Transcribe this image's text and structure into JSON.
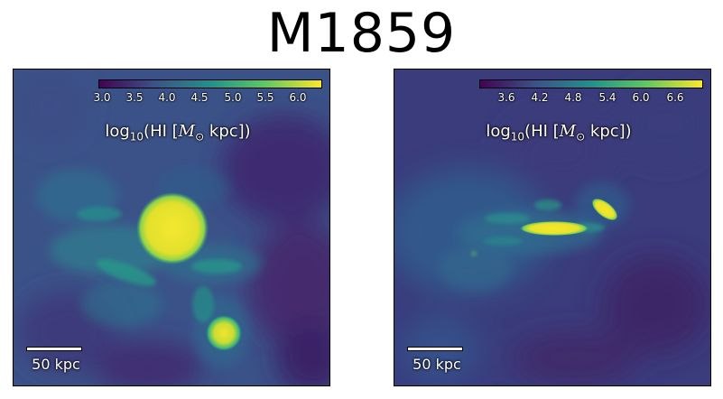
{
  "title": "M1859",
  "colors": {
    "viridis_dark": "#440154",
    "viridis_blue": "#31688e",
    "viridis_teal": "#21918c",
    "viridis_green": "#35b779",
    "viridis_yellow": "#fde725"
  },
  "panels": [
    {
      "colorbar": {
        "label_prefix": "log",
        "label_sub": "10",
        "label_main": "(HI [",
        "label_symbol": "M",
        "label_sun": "⊙",
        "label_unit": " kpc])",
        "ticks": [
          "3.0",
          "3.5",
          "4.0",
          "4.5",
          "5.0",
          "5.5",
          "6.0"
        ]
      },
      "scalebar_label": "50 kpc"
    },
    {
      "colorbar": {
        "label_prefix": "log",
        "label_sub": "10",
        "label_main": "(HI [",
        "label_symbol": "M",
        "label_sun": "⊙",
        "label_unit": " kpc])",
        "ticks": [
          "3.6",
          "4.2",
          "4.8",
          "5.4",
          "6.0",
          "6.6"
        ]
      },
      "scalebar_label": "50 kpc"
    }
  ]
}
